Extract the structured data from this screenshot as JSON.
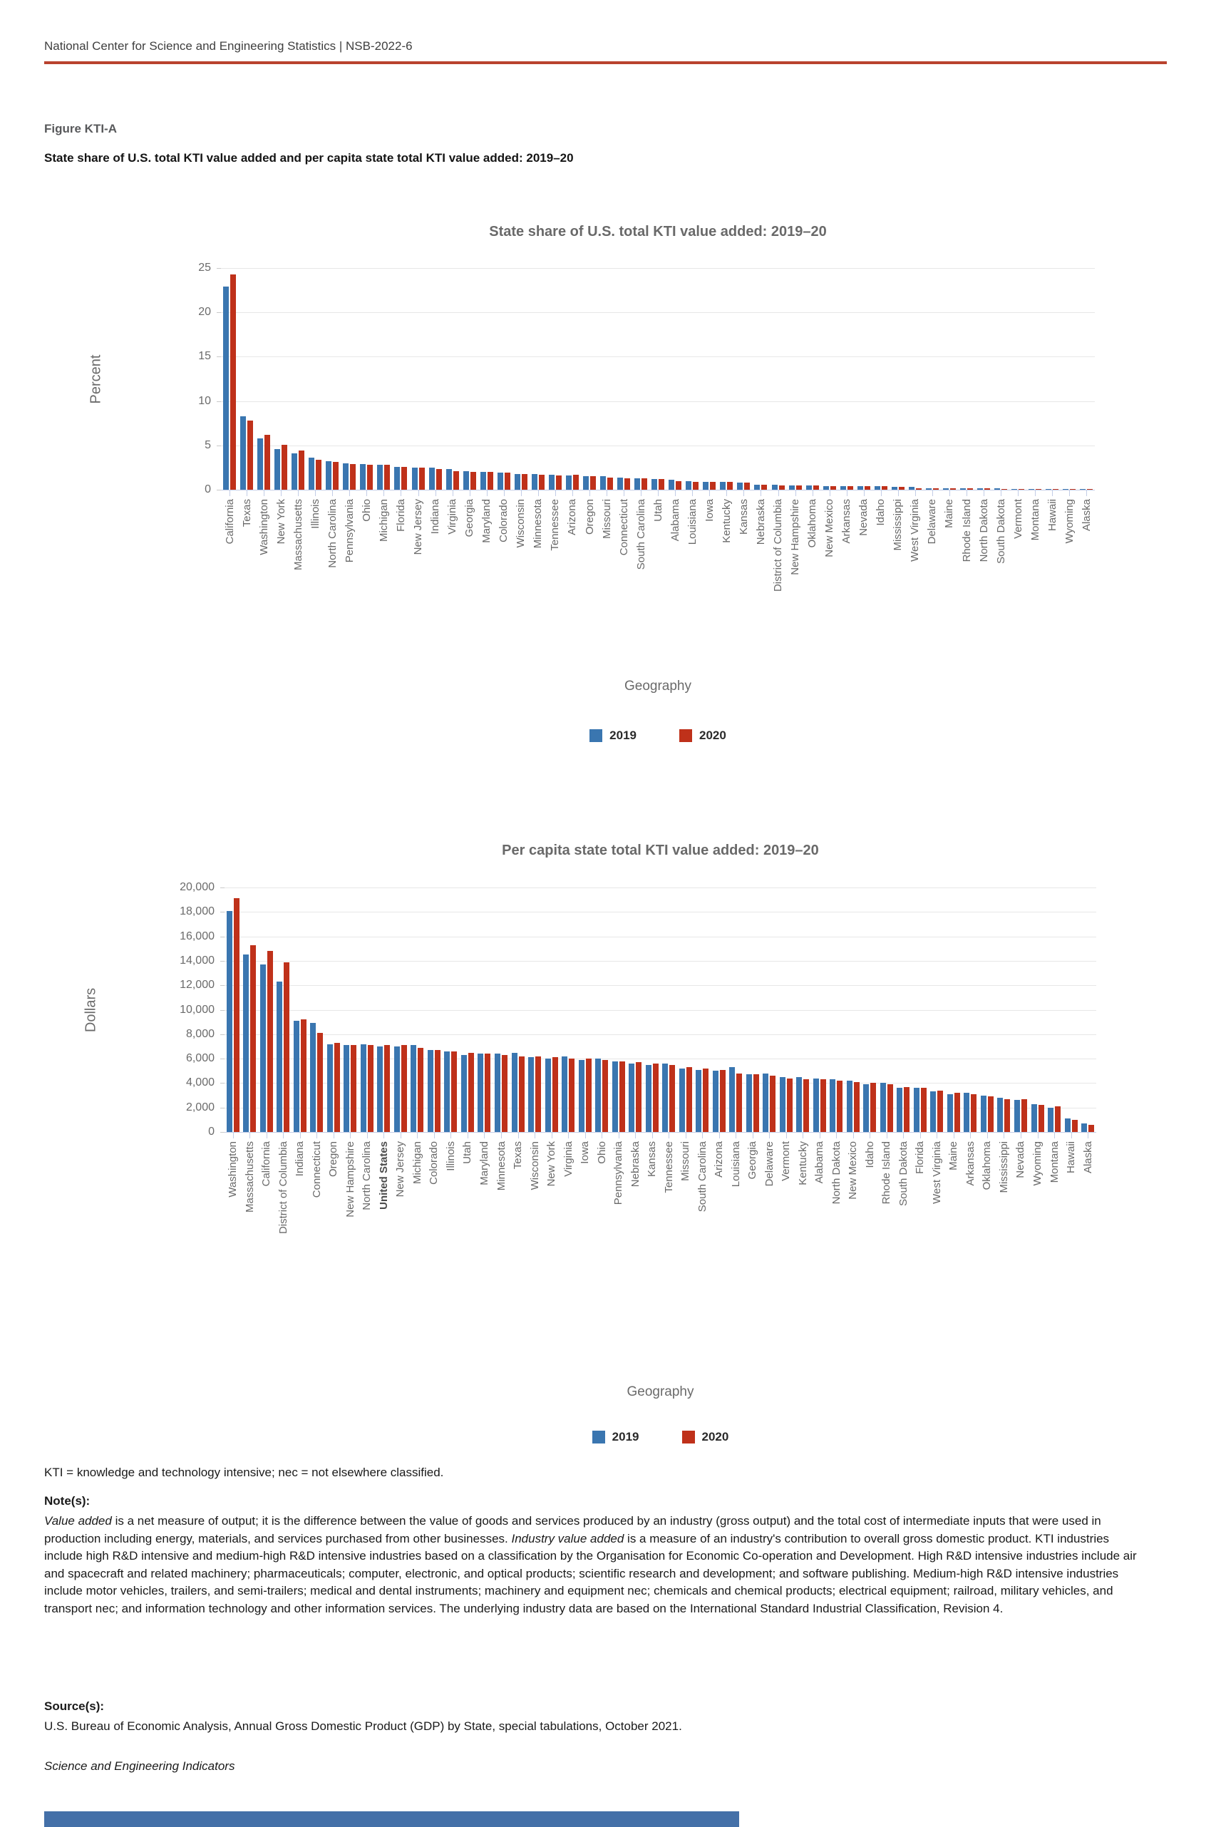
{
  "page": {
    "header": "National Center for Science and Engineering Statistics  |  NSB-2022-6",
    "figure_label": "Figure KTI-A",
    "figure_title": "State share of U.S. total KTI value added and per capita state total KTI value added: 2019–20",
    "abbreviation_note": "KTI = knowledge and technology intensive; nec = not elsewhere classified.",
    "notes_heading": "Note(s):",
    "note_segments": [
      {
        "text": "Value added",
        "italic": true
      },
      {
        "text": " is a net measure of output; it is the difference between the value of goods and services produced by an industry (gross output) and the total cost of intermediate inputs that were used in production including energy, materials, and services purchased from other businesses. ",
        "italic": false
      },
      {
        "text": "Industry value added",
        "italic": true
      },
      {
        "text": " is a measure of an industry's contribution to overall gross domestic product. KTI industries include high R&D intensive and medium-high R&D intensive industries based on a classification by the Organisation for Economic Co-operation and Development. High R&D intensive industries include air and spacecraft and related machinery; pharmaceuticals; computer, electronic, and optical products; scientific research and development; and software publishing. Medium-high R&D intensive industries include motor vehicles, trailers, and semi-trailers; medical and dental instruments; machinery and equipment nec; chemicals and chemical products; electrical equipment; railroad, military vehicles, and transport nec; and information technology and other information services. The underlying industry data are based on the International Standard Industrial Classification, Revision 4.",
        "italic": false
      }
    ],
    "source_heading": "Source(s):",
    "source_text": "U.S. Bureau of Economic Analysis, Annual Gross Domestic Product (GDP) by State, special tabulations, October 2021.",
    "footer_brand": "Science and Engineering Indicators"
  },
  "colors": {
    "accent_rule": "#b9422e",
    "series_2019": "#3a76b0",
    "series_2020": "#bf311a",
    "footer_bar": "#4470a8"
  },
  "legend": {
    "items": [
      {
        "label": "2019",
        "color_key": "series_2019"
      },
      {
        "label": "2020",
        "color_key": "series_2020"
      }
    ]
  },
  "chart_data": [
    {
      "type": "bar",
      "title": "State share of U.S. total KTI value added: 2019–20",
      "xlabel": "Geography",
      "ylabel": "Percent",
      "ylim": [
        0,
        25
      ],
      "grid": true,
      "legend_position": "bottom",
      "yticks": [
        {
          "v": 0,
          "label": "0"
        },
        {
          "v": 5,
          "label": "5"
        },
        {
          "v": 10,
          "label": "10"
        },
        {
          "v": 15,
          "label": "15"
        },
        {
          "v": 20,
          "label": "20"
        },
        {
          "v": 25,
          "label": "25"
        }
      ],
      "categories": [
        "California",
        "Texas",
        "Washington",
        "New York",
        "Massachusetts",
        "Illinois",
        "North Carolina",
        "Pennsylvania",
        "Ohio",
        "Michigan",
        "Florida",
        "New Jersey",
        "Indiana",
        "Virginia",
        "Georgia",
        "Maryland",
        "Colorado",
        "Wisconsin",
        "Minnesota",
        "Tennessee",
        "Arizona",
        "Oregon",
        "Missouri",
        "Connecticut",
        "South Carolina",
        "Utah",
        "Alabama",
        "Louisiana",
        "Iowa",
        "Kentucky",
        "Kansas",
        "Nebraska",
        "District of Columbia",
        "New Hampshire",
        "Oklahoma",
        "New Mexico",
        "Arkansas",
        "Nevada",
        "Idaho",
        "Mississippi",
        "West Virginia",
        "Delaware",
        "Maine",
        "Rhode Island",
        "North Dakota",
        "South Dakota",
        "Vermont",
        "Montana",
        "Hawaii",
        "Wyoming",
        "Alaska"
      ],
      "series": [
        {
          "name": "2019",
          "color": "#3a76b0",
          "values": [
            22.9,
            8.3,
            5.8,
            4.6,
            4.1,
            3.6,
            3.2,
            3.0,
            2.9,
            2.8,
            2.6,
            2.5,
            2.5,
            2.3,
            2.1,
            2.0,
            1.9,
            1.8,
            1.8,
            1.7,
            1.6,
            1.5,
            1.5,
            1.4,
            1.3,
            1.2,
            1.1,
            1.0,
            0.9,
            0.9,
            0.8,
            0.6,
            0.6,
            0.5,
            0.5,
            0.4,
            0.4,
            0.4,
            0.4,
            0.3,
            0.3,
            0.2,
            0.2,
            0.2,
            0.2,
            0.2,
            0.1,
            0.1,
            0.1,
            0.1,
            0.1
          ]
        },
        {
          "name": "2020",
          "color": "#bf311a",
          "values": [
            24.3,
            7.8,
            6.2,
            5.1,
            4.4,
            3.4,
            3.1,
            2.9,
            2.8,
            2.8,
            2.6,
            2.5,
            2.3,
            2.1,
            2.0,
            2.0,
            1.9,
            1.8,
            1.7,
            1.6,
            1.7,
            1.5,
            1.4,
            1.3,
            1.3,
            1.2,
            1.0,
            0.9,
            0.9,
            0.9,
            0.8,
            0.6,
            0.5,
            0.5,
            0.5,
            0.4,
            0.4,
            0.4,
            0.4,
            0.3,
            0.2,
            0.2,
            0.2,
            0.2,
            0.2,
            0.1,
            0.1,
            0.1,
            0.1,
            0.1,
            0.1
          ]
        }
      ]
    },
    {
      "type": "bar",
      "title": "Per capita state total KTI value added: 2019–20",
      "xlabel": "Geography",
      "ylabel": "Dollars",
      "ylim": [
        0,
        20000
      ],
      "grid": true,
      "legend_position": "bottom",
      "bold_category": "United States",
      "yticks": [
        {
          "v": 0,
          "label": "0"
        },
        {
          "v": 2000,
          "label": "2,000"
        },
        {
          "v": 4000,
          "label": "4,000"
        },
        {
          "v": 6000,
          "label": "6,000"
        },
        {
          "v": 8000,
          "label": "8,000"
        },
        {
          "v": 10000,
          "label": "10,000"
        },
        {
          "v": 12000,
          "label": "12,000"
        },
        {
          "v": 14000,
          "label": "14,000"
        },
        {
          "v": 16000,
          "label": "16,000"
        },
        {
          "v": 18000,
          "label": "18,000"
        },
        {
          "v": 20000,
          "label": "20,000"
        }
      ],
      "categories": [
        "Washington",
        "Massachusetts",
        "California",
        "District of Columbia",
        "Indiana",
        "Connecticut",
        "Oregon",
        "New Hampshire",
        "North Carolina",
        "United States",
        "New Jersey",
        "Michigan",
        "Colorado",
        "Illinois",
        "Utah",
        "Maryland",
        "Minnesota",
        "Texas",
        "Wisconsin",
        "New York",
        "Virginia",
        "Iowa",
        "Ohio",
        "Pennsylvania",
        "Nebraska",
        "Kansas",
        "Tennessee",
        "Missouri",
        "South Carolina",
        "Arizona",
        "Louisiana",
        "Georgia",
        "Delaware",
        "Vermont",
        "Kentucky",
        "Alabama",
        "North Dakota",
        "New Mexico",
        "Idaho",
        "Rhode Island",
        "South Dakota",
        "Florida",
        "West Virginia",
        "Maine",
        "Arkansas",
        "Oklahoma",
        "Mississippi",
        "Nevada",
        "Wyoming",
        "Montana",
        "Hawaii",
        "Alaska"
      ],
      "series": [
        {
          "name": "2019",
          "color": "#3a76b0",
          "values": [
            18100,
            14500,
            13700,
            12300,
            9100,
            8900,
            7200,
            7100,
            7200,
            7000,
            7000,
            7100,
            6700,
            6600,
            6300,
            6400,
            6400,
            6500,
            6100,
            6000,
            6200,
            5900,
            6000,
            5800,
            5600,
            5500,
            5600,
            5200,
            5100,
            5000,
            5300,
            4700,
            4800,
            4500,
            4500,
            4400,
            4300,
            4200,
            3900,
            4000,
            3600,
            3600,
            3300,
            3100,
            3200,
            3000,
            2800,
            2600,
            2300,
            2000,
            1100,
            700
          ]
        },
        {
          "name": "2020",
          "color": "#bf311a",
          "values": [
            19100,
            15300,
            14800,
            13900,
            9200,
            8100,
            7300,
            7100,
            7100,
            7100,
            7100,
            6900,
            6700,
            6600,
            6500,
            6400,
            6300,
            6200,
            6200,
            6100,
            6000,
            6000,
            5900,
            5800,
            5700,
            5600,
            5500,
            5300,
            5200,
            5100,
            4800,
            4700,
            4600,
            4400,
            4300,
            4300,
            4200,
            4100,
            4000,
            3900,
            3700,
            3600,
            3400,
            3200,
            3100,
            2900,
            2700,
            2700,
            2200,
            2100,
            1000,
            600
          ]
        }
      ]
    }
  ]
}
